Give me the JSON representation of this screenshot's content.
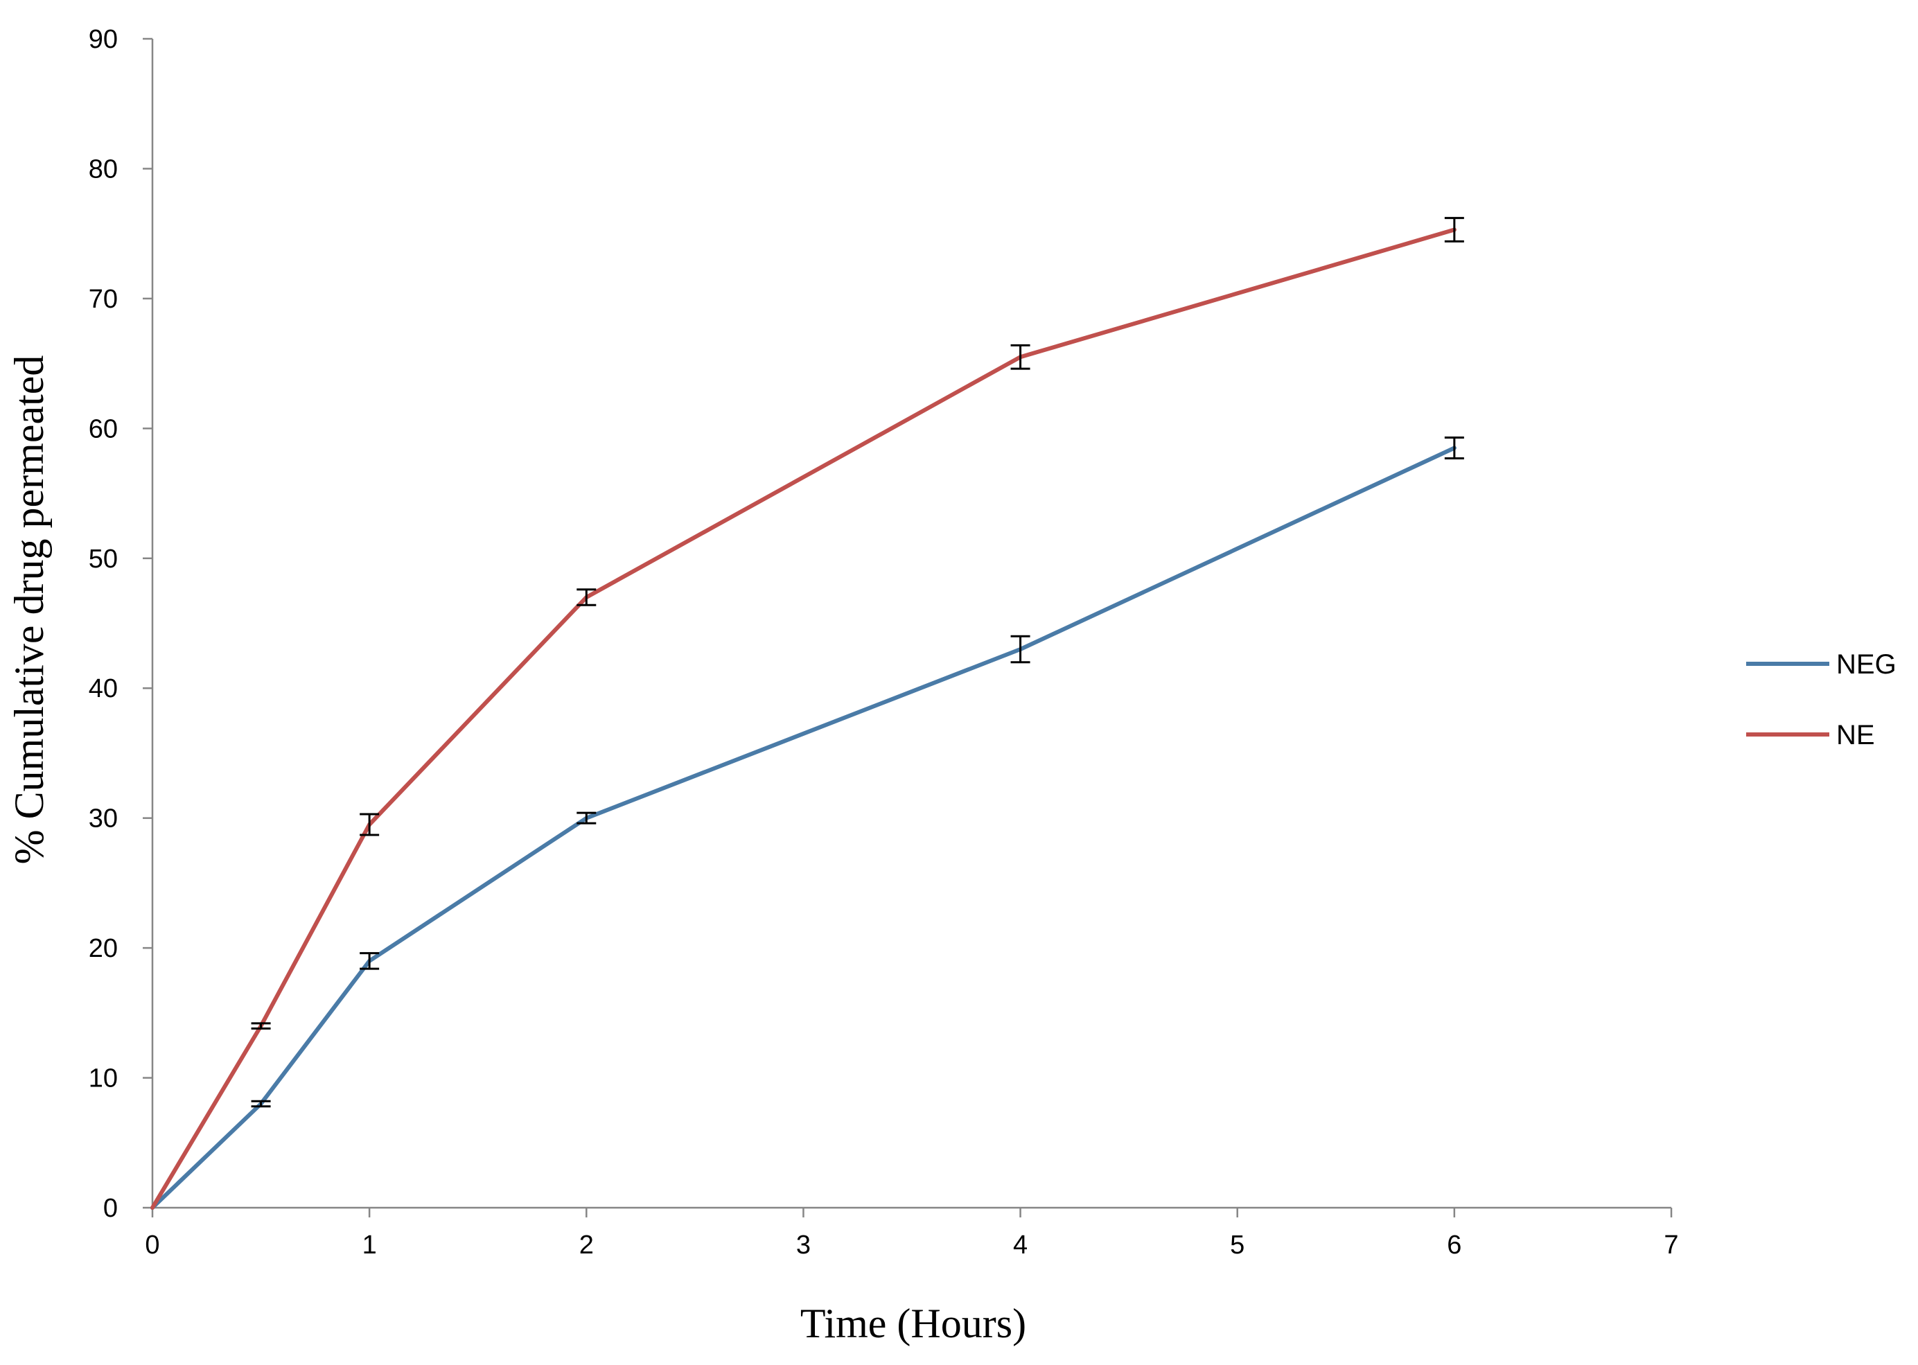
{
  "chart_data": {
    "type": "line",
    "title": "",
    "xlabel": "Time  (Hours)",
    "ylabel": "% Cumulative  drug permeated",
    "xlim": [
      0,
      7
    ],
    "ylim": [
      0,
      90
    ],
    "x_ticks": [
      0,
      1,
      2,
      3,
      4,
      5,
      6,
      7
    ],
    "y_ticks": [
      0,
      10,
      20,
      30,
      40,
      50,
      60,
      70,
      80,
      90
    ],
    "grid": false,
    "legend_position": "right",
    "series": [
      {
        "name": "NEG",
        "color": "#4a7ba7",
        "x": [
          0,
          0.5,
          1,
          2,
          4,
          6
        ],
        "y": [
          0,
          8,
          19,
          30,
          43,
          58.5
        ],
        "error": [
          0,
          0.2,
          0.6,
          0.4,
          1.0,
          0.8
        ]
      },
      {
        "name": "NE",
        "color": "#c0504d",
        "x": [
          0,
          0.5,
          1,
          2,
          4,
          6
        ],
        "y": [
          0,
          14,
          29.5,
          47,
          65.5,
          75.3
        ],
        "error": [
          0,
          0.2,
          0.8,
          0.6,
          0.9,
          0.9
        ]
      }
    ]
  }
}
